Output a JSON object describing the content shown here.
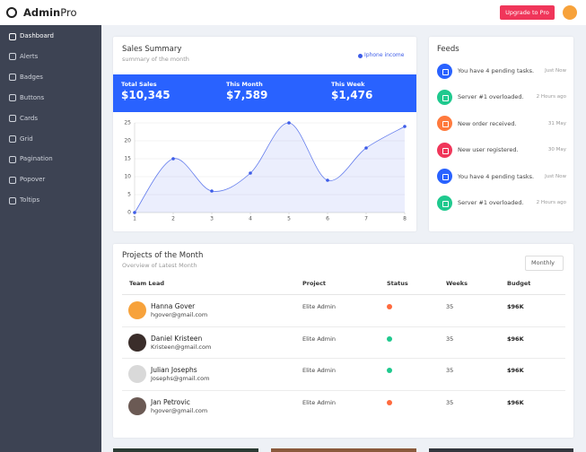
{
  "brand": {
    "name": "Admin",
    "suffix": "Pro"
  },
  "topbar": {
    "upgrade": "Upgrade to Pro"
  },
  "sidebar": [
    "Dashboard",
    "Alerts",
    "Badges",
    "Buttons",
    "Cards",
    "Grid",
    "Pagination",
    "Popover",
    "Toltips"
  ],
  "sales_summary": {
    "title": "Sales Summary",
    "subtitle": "summary of the month",
    "stats": [
      {
        "label": "Total Sales",
        "value": "$10,345"
      },
      {
        "label": "This Month",
        "value": "$7,589"
      },
      {
        "label": "This Week",
        "value": "$1,476"
      }
    ]
  },
  "chart_data": {
    "type": "line",
    "x": [
      1,
      2,
      3,
      4,
      5,
      6,
      7,
      8
    ],
    "series": [
      {
        "name": "Iphone income",
        "color": "#3d5ce8",
        "values": [
          0,
          15,
          6,
          11,
          25,
          9,
          18,
          24
        ]
      }
    ],
    "xlim": [
      1,
      8
    ],
    "xticks": [
      1,
      2,
      3,
      4,
      5,
      6,
      7,
      8
    ],
    "ylim": [
      0,
      25
    ],
    "yticks": [
      0,
      5,
      10,
      15,
      20,
      25
    ],
    "grid": true
  },
  "feeds": {
    "title": "Feeds",
    "items": [
      {
        "text": "You have 4 pending tasks.",
        "time": "Just Now",
        "color": "#2962ff"
      },
      {
        "text": "Server #1 overloaded.",
        "time": "2 Hours ago",
        "color": "#1fc98e"
      },
      {
        "text": "New order received.",
        "time": "31 May",
        "color": "#ff7a3d"
      },
      {
        "text": "New user registered.",
        "time": "30 May",
        "color": "#f0365a"
      },
      {
        "text": "You have 4 pending tasks.",
        "time": "Just Now",
        "color": "#2962ff"
      },
      {
        "text": "Server #1 overloaded.",
        "time": "2 Hours ago",
        "color": "#1fc98e"
      }
    ]
  },
  "projects": {
    "title": "Projects of the Month",
    "subtitle": "Overview of Latest Month",
    "filter": "Monthly",
    "columns": [
      "Team Lead",
      "Project",
      "Status",
      "Weeks",
      "Budget"
    ],
    "rows": [
      {
        "name": "Hanna Gover",
        "email": "hgover@gmail.com",
        "project": "Elite Admin",
        "status_color": "#ff6a3d",
        "weeks": 35,
        "budget": "$96K",
        "avatar_color": "#f7a23b"
      },
      {
        "name": "Daniel Kristeen",
        "email": "Kristeen@gmail.com",
        "project": "Elite Admin",
        "status_color": "#1fc98e",
        "weeks": 35,
        "budget": "$96K",
        "avatar_color": "#3a2d2a"
      },
      {
        "name": "Julian Josephs",
        "email": "Josephs@gmail.com",
        "project": "Elite Admin",
        "status_color": "#1fc98e",
        "weeks": 35,
        "budget": "$96K",
        "avatar_color": "#d9d9d9"
      },
      {
        "name": "Jan Petrovic",
        "email": "hgover@gmail.com",
        "project": "Elite Admin",
        "status_color": "#ff6a3d",
        "weeks": 35,
        "budget": "$96K",
        "avatar_color": "#6b5a54"
      }
    ]
  }
}
